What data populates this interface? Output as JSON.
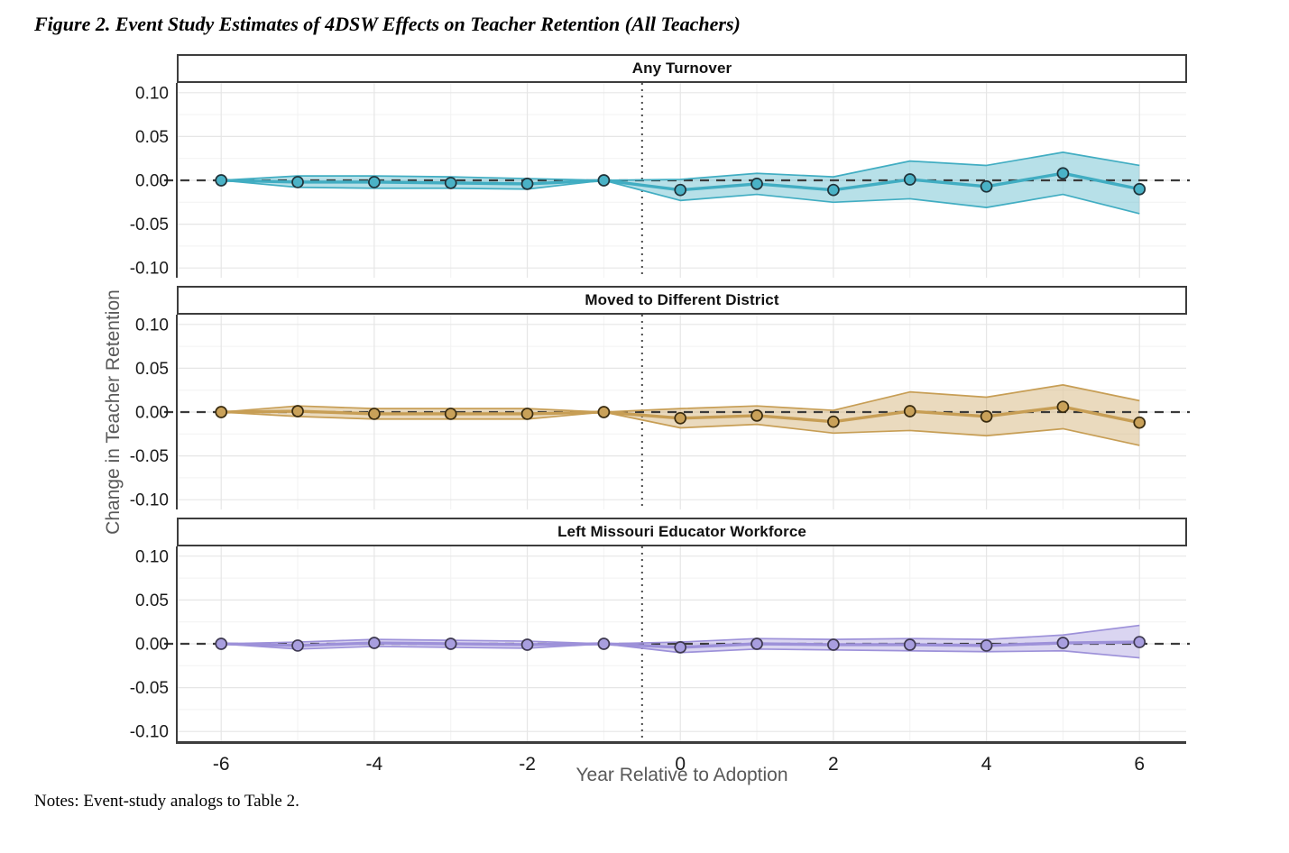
{
  "figure": {
    "title": "Figure 2. Event Study Estimates of 4DSW Effects on Teacher Retention (All Teachers)",
    "y_axis_title": "Change in Teacher Retention",
    "x_axis_title": "Year Relative to Adoption",
    "notes": "Notes: Event-study analogs to Table 2."
  },
  "axes": {
    "xlim": [
      -6.58,
      6.61
    ],
    "ylim": [
      -0.1111,
      0.1111
    ],
    "x_tick_values": [
      -6,
      -4,
      -2,
      0,
      2,
      4,
      6
    ],
    "x_tick_labels": [
      "-6",
      "-4",
      "-2",
      "0",
      "2",
      "4",
      "6"
    ],
    "x_minor_values": [
      -5,
      -3,
      -1,
      1,
      3,
      5
    ],
    "y_tick_values": [
      0.1,
      0.05,
      0.0,
      -0.05,
      -0.1
    ],
    "y_tick_labels": [
      "0.10",
      "0.05",
      "0.00",
      "-0.05",
      "-0.10"
    ],
    "y_minor_values": [
      0.075,
      0.025,
      -0.025,
      -0.075
    ],
    "vline_x": -0.5,
    "vline_color": "#4a4a4a",
    "zero_line_color": "#3a3a3a",
    "grid_major_color": "#e6e6e6",
    "grid_minor_color": "#f2f2f2",
    "axis_line_color": "#3d3d3d",
    "grid": "on",
    "legend": "none"
  },
  "chart_data": [
    {
      "type": "line",
      "title": "Any Turnover",
      "line_color": "#41adc2",
      "marker_fill": "#4ab2c6",
      "marker_stroke": "#20333a",
      "x": [
        -6,
        -5,
        -4,
        -3,
        -2,
        -1,
        0,
        1,
        2,
        3,
        4,
        5,
        6
      ],
      "estimate": [
        0.0,
        -0.002,
        -0.002,
        -0.003,
        -0.004,
        0.0,
        -0.011,
        -0.004,
        -0.011,
        0.001,
        -0.007,
        0.008,
        -0.01
      ],
      "ci_lower": [
        0.0,
        -0.008,
        -0.009,
        -0.009,
        -0.01,
        0.0,
        -0.023,
        -0.016,
        -0.025,
        -0.021,
        -0.031,
        -0.016,
        -0.038
      ],
      "ci_upper": [
        0.0,
        0.005,
        0.005,
        0.004,
        0.002,
        0.0,
        0.001,
        0.008,
        0.004,
        0.022,
        0.017,
        0.032,
        0.017
      ]
    },
    {
      "type": "line",
      "title": "Moved to Different District",
      "line_color": "#c79e55",
      "marker_fill": "#c9a159",
      "marker_stroke": "#3a2c10",
      "x": [
        -6,
        -5,
        -4,
        -3,
        -2,
        -1,
        0,
        1,
        2,
        3,
        4,
        5,
        6
      ],
      "estimate": [
        0.0,
        0.001,
        -0.002,
        -0.002,
        -0.002,
        0.0,
        -0.007,
        -0.004,
        -0.011,
        0.001,
        -0.005,
        0.006,
        -0.012
      ],
      "ci_lower": [
        0.0,
        -0.005,
        -0.008,
        -0.008,
        -0.008,
        0.0,
        -0.018,
        -0.014,
        -0.024,
        -0.021,
        -0.027,
        -0.019,
        -0.038
      ],
      "ci_upper": [
        0.0,
        0.007,
        0.004,
        0.004,
        0.004,
        0.0,
        0.004,
        0.007,
        0.002,
        0.023,
        0.017,
        0.031,
        0.013
      ]
    },
    {
      "type": "line",
      "title": "Left Missouri Educator Workforce",
      "line_color": "#9d91d9",
      "marker_fill": "#a89edf",
      "marker_stroke": "#3f3a52",
      "x": [
        -6,
        -5,
        -4,
        -3,
        -2,
        -1,
        0,
        1,
        2,
        3,
        4,
        5,
        6
      ],
      "estimate": [
        0.0,
        -0.002,
        0.001,
        0.0,
        -0.001,
        0.0,
        -0.004,
        0.0,
        -0.001,
        -0.001,
        -0.002,
        0.001,
        0.002
      ],
      "ci_lower": [
        0.0,
        -0.006,
        -0.003,
        -0.004,
        -0.005,
        0.0,
        -0.01,
        -0.006,
        -0.007,
        -0.008,
        -0.009,
        -0.008,
        -0.016
      ],
      "ci_upper": [
        0.0,
        0.002,
        0.005,
        0.004,
        0.003,
        0.0,
        0.002,
        0.006,
        0.005,
        0.006,
        0.005,
        0.01,
        0.021
      ]
    }
  ]
}
